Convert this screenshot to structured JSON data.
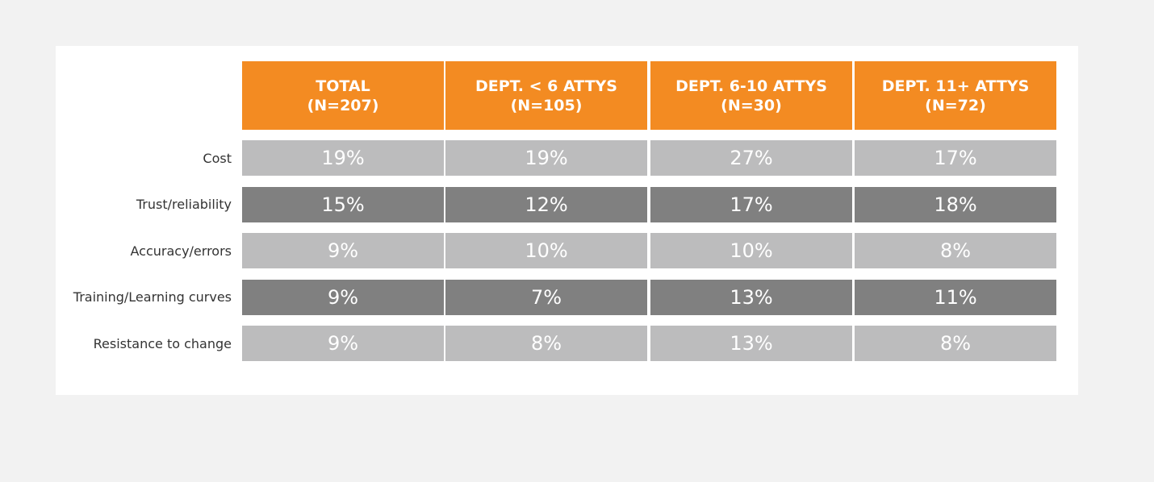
{
  "chart_data": {
    "type": "table",
    "columns": [
      {
        "title": "TOTAL",
        "subtitle": "(N=207)"
      },
      {
        "title": "DEPT. < 6 ATTYS",
        "subtitle": "(N=105)"
      },
      {
        "title": "DEPT. 6-10 ATTYS",
        "subtitle": "(N=30)"
      },
      {
        "title": "DEPT. 11+ ATTYS",
        "subtitle": "(N=72)"
      }
    ],
    "rows": [
      {
        "label": "Cost",
        "values": [
          "19%",
          "19%",
          "27%",
          "17%"
        ]
      },
      {
        "label": "Trust/reliability",
        "values": [
          "15%",
          "12%",
          "17%",
          "18%"
        ]
      },
      {
        "label": "Accuracy/errors",
        "values": [
          "9%",
          "10%",
          "10%",
          "8%"
        ]
      },
      {
        "label": "Training/Learning curves",
        "values": [
          "9%",
          "7%",
          "13%",
          "11%"
        ]
      },
      {
        "label": "Resistance to change",
        "values": [
          "9%",
          "8%",
          "13%",
          "8%"
        ]
      }
    ],
    "colors": {
      "header": "#f38b22",
      "row_light": "#bcbcbd",
      "row_dark": "#808080"
    }
  }
}
